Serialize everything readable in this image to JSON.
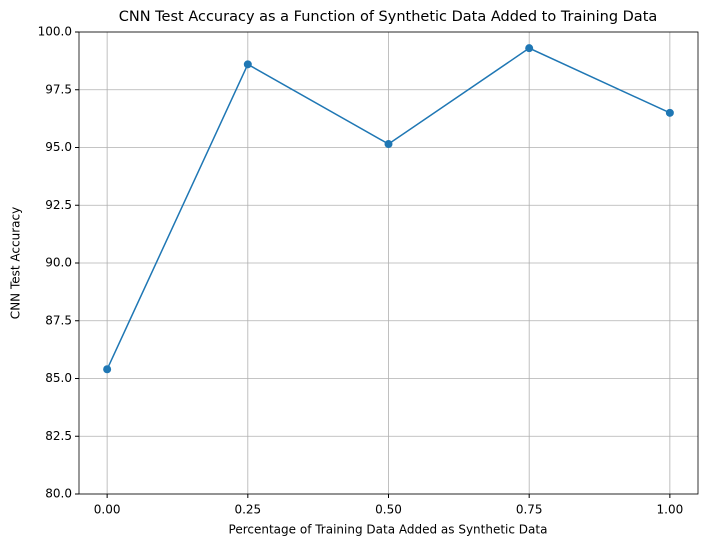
{
  "chart_data": {
    "type": "line",
    "title": "CNN Test Accuracy as a Function of Synthetic Data Added to Training Data",
    "xlabel": "Percentage of Training Data Added as Synthetic Data",
    "ylabel": "CNN Test Accuracy",
    "x": [
      0,
      0.25,
      0.5,
      0.75,
      1.0
    ],
    "series": [
      {
        "name": "CNN Test Accuracy",
        "color": "#1f77b4",
        "values": [
          85.4,
          98.6,
          95.15,
          99.3,
          96.5
        ]
      }
    ],
    "xlim": [
      -0.05,
      1.05
    ],
    "xticks": [
      {
        "value": 0,
        "label": "0.00"
      },
      0.25,
      {
        "value": 0.5,
        "label": "0.50"
      },
      0.75,
      {
        "value": 1.0,
        "label": "1.00"
      }
    ],
    "ylim": [
      80,
      100
    ],
    "yticks": [
      {
        "value": 80,
        "label": "80.0"
      },
      82.5,
      {
        "value": 85,
        "label": "85.0"
      },
      87.5,
      {
        "value": 90,
        "label": "90.0"
      },
      92.5,
      {
        "value": 95,
        "label": "95.0"
      },
      97.5,
      {
        "value": 100,
        "label": "100.0"
      }
    ],
    "grid": true,
    "markers": true
  }
}
